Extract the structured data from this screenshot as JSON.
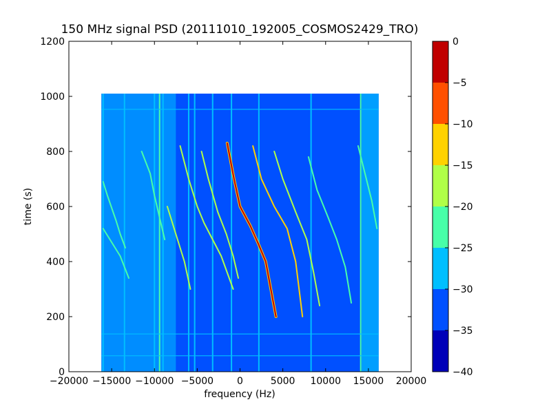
{
  "chart_data": {
    "type": "heatmap",
    "title": "150 MHz signal PSD (20111010_192005_COSMOS2429_TRO)",
    "xlabel": "frequency (Hz)",
    "ylabel": "time (s)",
    "xlim": [
      -20000,
      20000
    ],
    "ylim": [
      0,
      1200
    ],
    "x_ticks": [
      -20000,
      -15000,
      -10000,
      -5000,
      0,
      5000,
      10000,
      15000,
      20000
    ],
    "y_ticks": [
      0,
      200,
      400,
      600,
      800,
      1000,
      1200
    ],
    "x_tick_labels": [
      "−20000",
      "−15000",
      "−10000",
      "−5000",
      "0",
      "5000",
      "10000",
      "15000",
      "20000"
    ],
    "y_tick_labels": [
      "0",
      "200",
      "400",
      "600",
      "800",
      "1000",
      "1200"
    ],
    "grid": false,
    "data_extent": {
      "x": [
        -16200,
        16200
      ],
      "y": [
        0,
        1010
      ]
    },
    "colorbar": {
      "min": -40,
      "max": 0,
      "levels": [
        -40,
        -35,
        -30,
        -25,
        -20,
        -15,
        -10,
        -5,
        0
      ],
      "tick_labels": [
        "−40",
        "−35",
        "−30",
        "−25",
        "−20",
        "−15",
        "−10",
        "−5",
        "0"
      ],
      "colors": [
        "#0000b8",
        "#0050ff",
        "#00bfff",
        "#48ffa8",
        "#b0ff48",
        "#ffd200",
        "#ff5000",
        "#c00000"
      ]
    },
    "background_level": -32,
    "spectral_lines": [
      {
        "x": -16000,
        "level": -27
      },
      {
        "x": -13500,
        "level": -27
      },
      {
        "x": -10000,
        "level": -27
      },
      {
        "x": -9400,
        "level": -22
      },
      {
        "x": -9000,
        "level": -27
      },
      {
        "x": -6000,
        "level": -27
      },
      {
        "x": -5300,
        "level": -27
      },
      {
        "x": -3200,
        "level": -27
      },
      {
        "x": -1000,
        "level": -27
      },
      {
        "x": 2200,
        "level": -27
      },
      {
        "x": 8300,
        "level": -27
      },
      {
        "x": 14100,
        "level": -22
      }
    ],
    "time_lines": [
      {
        "y": 58,
        "level": -27
      },
      {
        "y": 137,
        "level": -27
      },
      {
        "y": 953,
        "level": -27
      }
    ],
    "doppler_tracks": [
      {
        "x": [
          -16000,
          -15500,
          -14500,
          -14000,
          -13400
        ],
        "y": [
          690,
          640,
          550,
          500,
          450
        ],
        "level": -22
      },
      {
        "x": [
          -16000,
          -15000,
          -14000,
          -13500,
          -13000
        ],
        "y": [
          520,
          470,
          420,
          380,
          340
        ],
        "level": -22
      },
      {
        "x": [
          -11500,
          -10500,
          -10000,
          -9400,
          -8800
        ],
        "y": [
          800,
          720,
          640,
          560,
          480
        ],
        "level": -22
      },
      {
        "x": [
          -7000,
          -6000,
          -5000,
          -4200,
          -3200,
          -2200,
          -1500,
          -800
        ],
        "y": [
          820,
          700,
          600,
          540,
          480,
          420,
          360,
          300
        ],
        "level": -17
      },
      {
        "x": [
          -4500,
          -3700,
          -2600,
          -1600,
          -800,
          -200
        ],
        "y": [
          800,
          700,
          580,
          500,
          420,
          340
        ],
        "level": -20
      },
      {
        "x": [
          -1500,
          -700,
          0,
          1200,
          2200,
          3000,
          3600,
          4200
        ],
        "y": [
          830,
          700,
          600,
          530,
          460,
          400,
          300,
          200
        ],
        "level": -5
      },
      {
        "x": [
          1500,
          2500,
          4000,
          5500,
          6500,
          7300
        ],
        "y": [
          820,
          700,
          600,
          520,
          400,
          200
        ],
        "level": -15
      },
      {
        "x": [
          4000,
          5000,
          6500,
          7800,
          8600,
          9300
        ],
        "y": [
          800,
          700,
          580,
          480,
          360,
          240
        ],
        "level": -17
      },
      {
        "x": [
          8000,
          9000,
          10300,
          11300,
          12300,
          13000
        ],
        "y": [
          780,
          660,
          560,
          480,
          380,
          250
        ],
        "level": -22
      },
      {
        "x": [
          -8500,
          -7500,
          -6500,
          -5800
        ],
        "y": [
          600,
          500,
          400,
          300
        ],
        "level": -20
      },
      {
        "x": [
          13800,
          14600,
          15400,
          16000
        ],
        "y": [
          820,
          720,
          620,
          520
        ],
        "level": -22
      }
    ]
  }
}
